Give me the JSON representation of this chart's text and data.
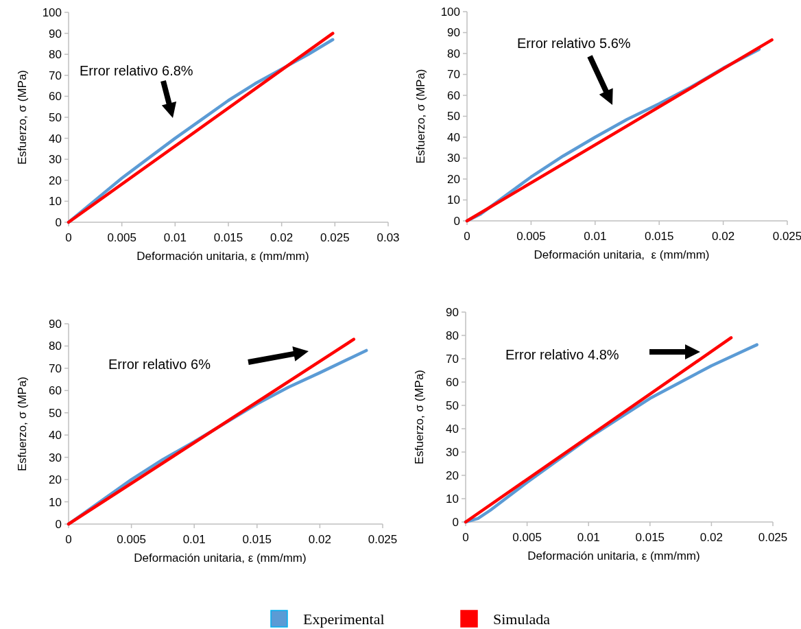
{
  "chart_data": [
    {
      "type": "line",
      "xlabel": "Deformación unitaria, ε (mm/mm)",
      "ylabel": "Esfuerzo, σ (MPa)",
      "xlim": [
        0,
        0.03
      ],
      "xticks": [
        0,
        0.005,
        0.01,
        0.015,
        0.02,
        0.025,
        0.03
      ],
      "ylim": [
        0,
        100
      ],
      "yticks": [
        0,
        10,
        20,
        30,
        40,
        50,
        60,
        70,
        80,
        90,
        100
      ],
      "grid": false,
      "legend": "bottom",
      "marker": "none",
      "annotations": [
        "Error relativo 6.8%"
      ],
      "series": [
        {
          "name": "Experimental",
          "color": "#5b9bd5",
          "x": [
            0,
            0.0025,
            0.005,
            0.0075,
            0.01,
            0.0125,
            0.015,
            0.0175,
            0.02,
            0.0225,
            0.0248
          ],
          "values": [
            0,
            10.5,
            21,
            30.5,
            40,
            49,
            58,
            66,
            73,
            80,
            87
          ]
        },
        {
          "name": "Simulada",
          "color": "#ff0000",
          "x": [
            0,
            0.0248
          ],
          "values": [
            0,
            90
          ]
        }
      ]
    },
    {
      "type": "line",
      "xlabel": "Deformación unitaria,  ε (mm/mm)",
      "ylabel": "Esfuerzo, σ (MPa)",
      "xlim": [
        0,
        0.025
      ],
      "xticks": [
        0,
        0.005,
        0.01,
        0.015,
        0.02,
        0.025
      ],
      "ylim": [
        0,
        100
      ],
      "yticks": [
        0,
        10,
        20,
        30,
        40,
        50,
        60,
        70,
        80,
        90,
        100
      ],
      "grid": false,
      "legend": "bottom",
      "marker": "none",
      "annotations": [
        "Error relativo 5.6%"
      ],
      "series": [
        {
          "name": "Experimental",
          "color": "#5b9bd5",
          "x": [
            0,
            0.001,
            0.003,
            0.005,
            0.0075,
            0.01,
            0.0125,
            0.015,
            0.0175,
            0.02,
            0.0228
          ],
          "values": [
            0,
            3,
            12,
            21,
            31,
            40,
            48.5,
            56,
            64,
            73,
            82
          ]
        },
        {
          "name": "Simulada",
          "color": "#ff0000",
          "x": [
            0,
            0.0238
          ],
          "values": [
            0,
            86.5
          ]
        }
      ]
    },
    {
      "type": "line",
      "xlabel": "Deformación unitaria, ε (mm/mm)",
      "ylabel": "Esfuerzo, σ (MPa)",
      "xlim": [
        0,
        0.025
      ],
      "xticks": [
        0,
        0.005,
        0.01,
        0.015,
        0.02,
        0.025
      ],
      "ylim": [
        0,
        90
      ],
      "yticks": [
        0,
        10,
        20,
        30,
        40,
        50,
        60,
        70,
        80,
        90
      ],
      "grid": false,
      "legend": "bottom",
      "marker": "none",
      "annotations": [
        "Error relativo 6%"
      ],
      "series": [
        {
          "name": "Experimental",
          "color": "#5b9bd5",
          "x": [
            0,
            0.0025,
            0.005,
            0.0075,
            0.01,
            0.0125,
            0.015,
            0.0175,
            0.02,
            0.0237
          ],
          "values": [
            0,
            10,
            20,
            29,
            37,
            45.5,
            54,
            61.5,
            68,
            78
          ]
        },
        {
          "name": "Simulada",
          "color": "#ff0000",
          "x": [
            0,
            0.0227
          ],
          "values": [
            0,
            83
          ]
        }
      ]
    },
    {
      "type": "line",
      "xlabel": "Deformación unitaria, ε (mm/mm)",
      "ylabel": "Esfuerzo, σ (MPa)",
      "xlim": [
        0,
        0.025
      ],
      "xticks": [
        0,
        0.005,
        0.01,
        0.015,
        0.02,
        0.025
      ],
      "ylim": [
        0,
        90
      ],
      "yticks": [
        0,
        10,
        20,
        30,
        40,
        50,
        60,
        70,
        80,
        90
      ],
      "grid": false,
      "legend": "bottom",
      "marker": "none",
      "annotations": [
        "Error relativo 4.8%"
      ],
      "series": [
        {
          "name": "Experimental",
          "color": "#5b9bd5",
          "x": [
            0,
            0.001,
            0.002,
            0.005,
            0.0075,
            0.01,
            0.0125,
            0.015,
            0.0175,
            0.02,
            0.0237
          ],
          "values": [
            0,
            1.5,
            5,
            17,
            26.5,
            36,
            44.5,
            53,
            60,
            67,
            76
          ]
        },
        {
          "name": "Simulada",
          "color": "#ff0000",
          "x": [
            0,
            0.0216
          ],
          "values": [
            0,
            79
          ]
        }
      ]
    }
  ]
}
